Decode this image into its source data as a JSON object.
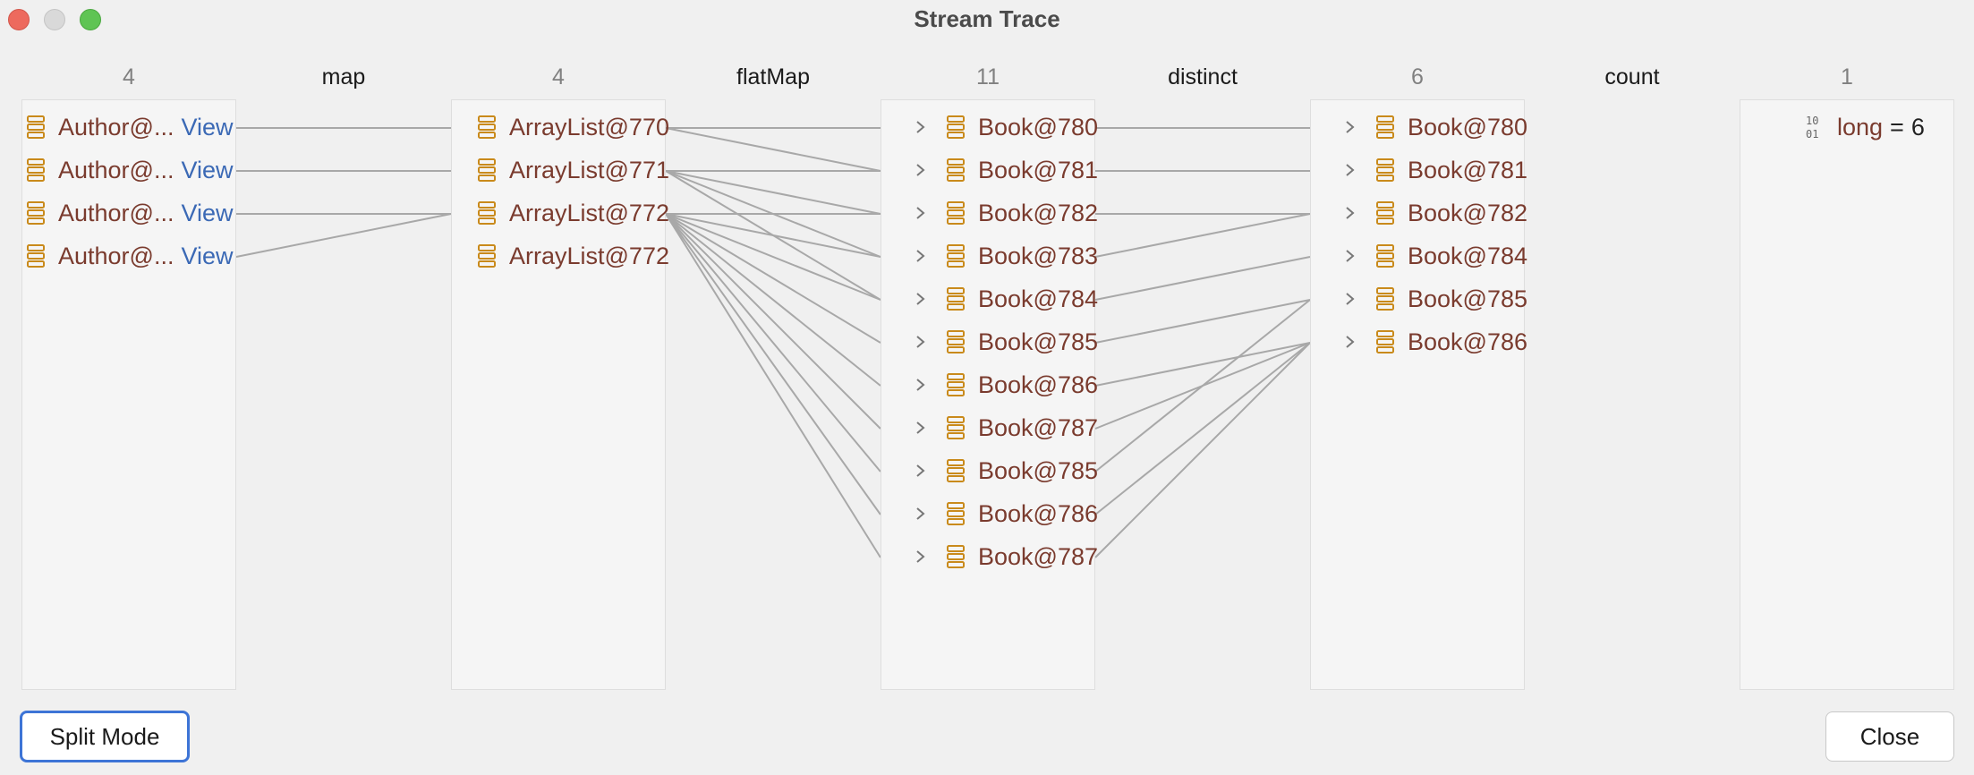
{
  "window": {
    "title": "Stream Trace"
  },
  "columns": [
    {
      "count": "4",
      "rows": [
        {
          "label": "Author@...",
          "link": "View"
        },
        {
          "label": "Author@...",
          "link": "View"
        },
        {
          "label": "Author@...",
          "link": "View"
        },
        {
          "label": "Author@...",
          "link": "View"
        }
      ]
    },
    {
      "count": "4",
      "rows": [
        {
          "label": "ArrayList@770"
        },
        {
          "label": "ArrayList@771"
        },
        {
          "label": "ArrayList@772"
        },
        {
          "label": "ArrayList@772"
        }
      ]
    },
    {
      "count": "11",
      "rows": [
        {
          "label": "Book@780"
        },
        {
          "label": "Book@781"
        },
        {
          "label": "Book@782"
        },
        {
          "label": "Book@783"
        },
        {
          "label": "Book@784"
        },
        {
          "label": "Book@785"
        },
        {
          "label": "Book@786"
        },
        {
          "label": "Book@787"
        },
        {
          "label": "Book@785"
        },
        {
          "label": "Book@786"
        },
        {
          "label": "Book@787"
        }
      ]
    },
    {
      "count": "6",
      "rows": [
        {
          "label": "Book@780"
        },
        {
          "label": "Book@781"
        },
        {
          "label": "Book@782"
        },
        {
          "label": "Book@784"
        },
        {
          "label": "Book@785"
        },
        {
          "label": "Book@786"
        }
      ]
    },
    {
      "count": "1",
      "result": {
        "type": "long",
        "equals": "=",
        "value": "6"
      }
    }
  ],
  "operations": [
    "map",
    "flatMap",
    "distinct",
    "count"
  ],
  "links": {
    "map": [
      [
        0,
        0
      ],
      [
        1,
        1
      ],
      [
        2,
        2
      ],
      [
        3,
        2
      ]
    ],
    "flatMap": [
      [
        0,
        0
      ],
      [
        0,
        1
      ],
      [
        1,
        1
      ],
      [
        1,
        2
      ],
      [
        1,
        3
      ],
      [
        1,
        4
      ],
      [
        2,
        2
      ],
      [
        2,
        3
      ],
      [
        2,
        4
      ],
      [
        2,
        5
      ],
      [
        2,
        6
      ],
      [
        2,
        7
      ],
      [
        2,
        8
      ],
      [
        2,
        9
      ],
      [
        2,
        10
      ]
    ],
    "distinct": [
      [
        0,
        0
      ],
      [
        1,
        1
      ],
      [
        2,
        2
      ],
      [
        3,
        2
      ],
      [
        4,
        3
      ],
      [
        5,
        4
      ],
      [
        6,
        5
      ],
      [
        7,
        5
      ],
      [
        8,
        4
      ],
      [
        9,
        5
      ],
      [
        10,
        5
      ]
    ]
  },
  "buttons": {
    "split_mode": "Split Mode",
    "close": "Close"
  },
  "colors": {
    "link_line": "#a8a8a8",
    "accent": "#3d74d6",
    "object_label": "#7a3b2e",
    "view_link": "#3b69b5",
    "icon": "#c98a1b"
  }
}
